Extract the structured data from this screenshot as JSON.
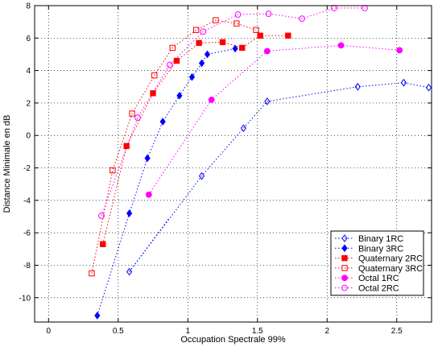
{
  "chart_data": {
    "type": "line",
    "title": "",
    "xlabel": "Occupation Spectrale 99%",
    "ylabel": "Distance Minimale en dB",
    "xlim": [
      -0.1,
      2.75
    ],
    "ylim": [
      -11.5,
      8
    ],
    "xticks": [
      0,
      0.5,
      1,
      1.5,
      2,
      2.5
    ],
    "xtick_labels": [
      "0",
      "0.5",
      "1",
      "1.5",
      "2",
      "2.5"
    ],
    "yticks": [
      -10,
      -8,
      -6,
      -4,
      -2,
      0,
      2,
      4,
      6,
      8
    ],
    "ytick_labels": [
      "-10",
      "-8",
      "-6",
      "-4",
      "-2",
      "0",
      "2",
      "4",
      "6",
      "8"
    ],
    "grid": true,
    "legend_position": "bottom-right",
    "series": [
      {
        "name": "Binary 1RC",
        "color": "#0000ff",
        "marker": "diamond-open",
        "x": [
          0.58,
          1.1,
          1.4,
          1.57,
          2.22,
          2.55,
          2.73
        ],
        "y": [
          -8.4,
          -2.5,
          0.45,
          2.1,
          3.0,
          3.25,
          2.95
        ]
      },
      {
        "name": "Binary 3RC",
        "color": "#0000ff",
        "marker": "diamond-filled",
        "x": [
          0.35,
          0.58,
          0.71,
          0.82,
          0.94,
          1.03,
          1.1,
          1.14,
          1.34
        ],
        "y": [
          -11.1,
          -4.8,
          -1.4,
          0.85,
          2.45,
          3.6,
          4.45,
          5.0,
          5.35
        ]
      },
      {
        "name": "Quaternary 2RC",
        "color": "#ff0000",
        "marker": "square-filled",
        "x": [
          0.39,
          0.56,
          0.75,
          0.92,
          1.08,
          1.25,
          1.39,
          1.52,
          1.72
        ],
        "y": [
          -6.7,
          -0.65,
          2.6,
          4.6,
          5.7,
          5.75,
          5.4,
          6.15,
          6.15
        ]
      },
      {
        "name": "Quaternary 3RC",
        "color": "#ff0000",
        "marker": "square-open",
        "x": [
          0.31,
          0.46,
          0.6,
          0.76,
          0.89,
          1.06,
          1.2,
          1.35,
          1.49
        ],
        "y": [
          -8.5,
          -2.15,
          1.35,
          3.7,
          5.4,
          6.5,
          7.1,
          6.9,
          6.5
        ]
      },
      {
        "name": "Octal 1RC",
        "color": "#ff00ff",
        "marker": "circle-filled",
        "x": [
          0.72,
          1.17,
          1.57,
          2.1,
          2.52
        ],
        "y": [
          -3.65,
          2.2,
          5.2,
          5.55,
          5.25
        ]
      },
      {
        "name": "Octal 2RC",
        "color": "#ff00ff",
        "marker": "circle-open",
        "x": [
          0.38,
          0.64,
          0.87,
          1.11,
          1.36,
          1.58,
          1.82,
          2.05,
          2.27
        ],
        "y": [
          -4.95,
          1.1,
          4.35,
          6.4,
          7.45,
          7.5,
          7.2,
          7.85,
          7.85
        ]
      }
    ],
    "extra_line": {
      "color": "#0000ff",
      "x": [
        0.58,
        0.87
      ],
      "y": [
        -8.4,
        -5.05
      ]
    }
  }
}
